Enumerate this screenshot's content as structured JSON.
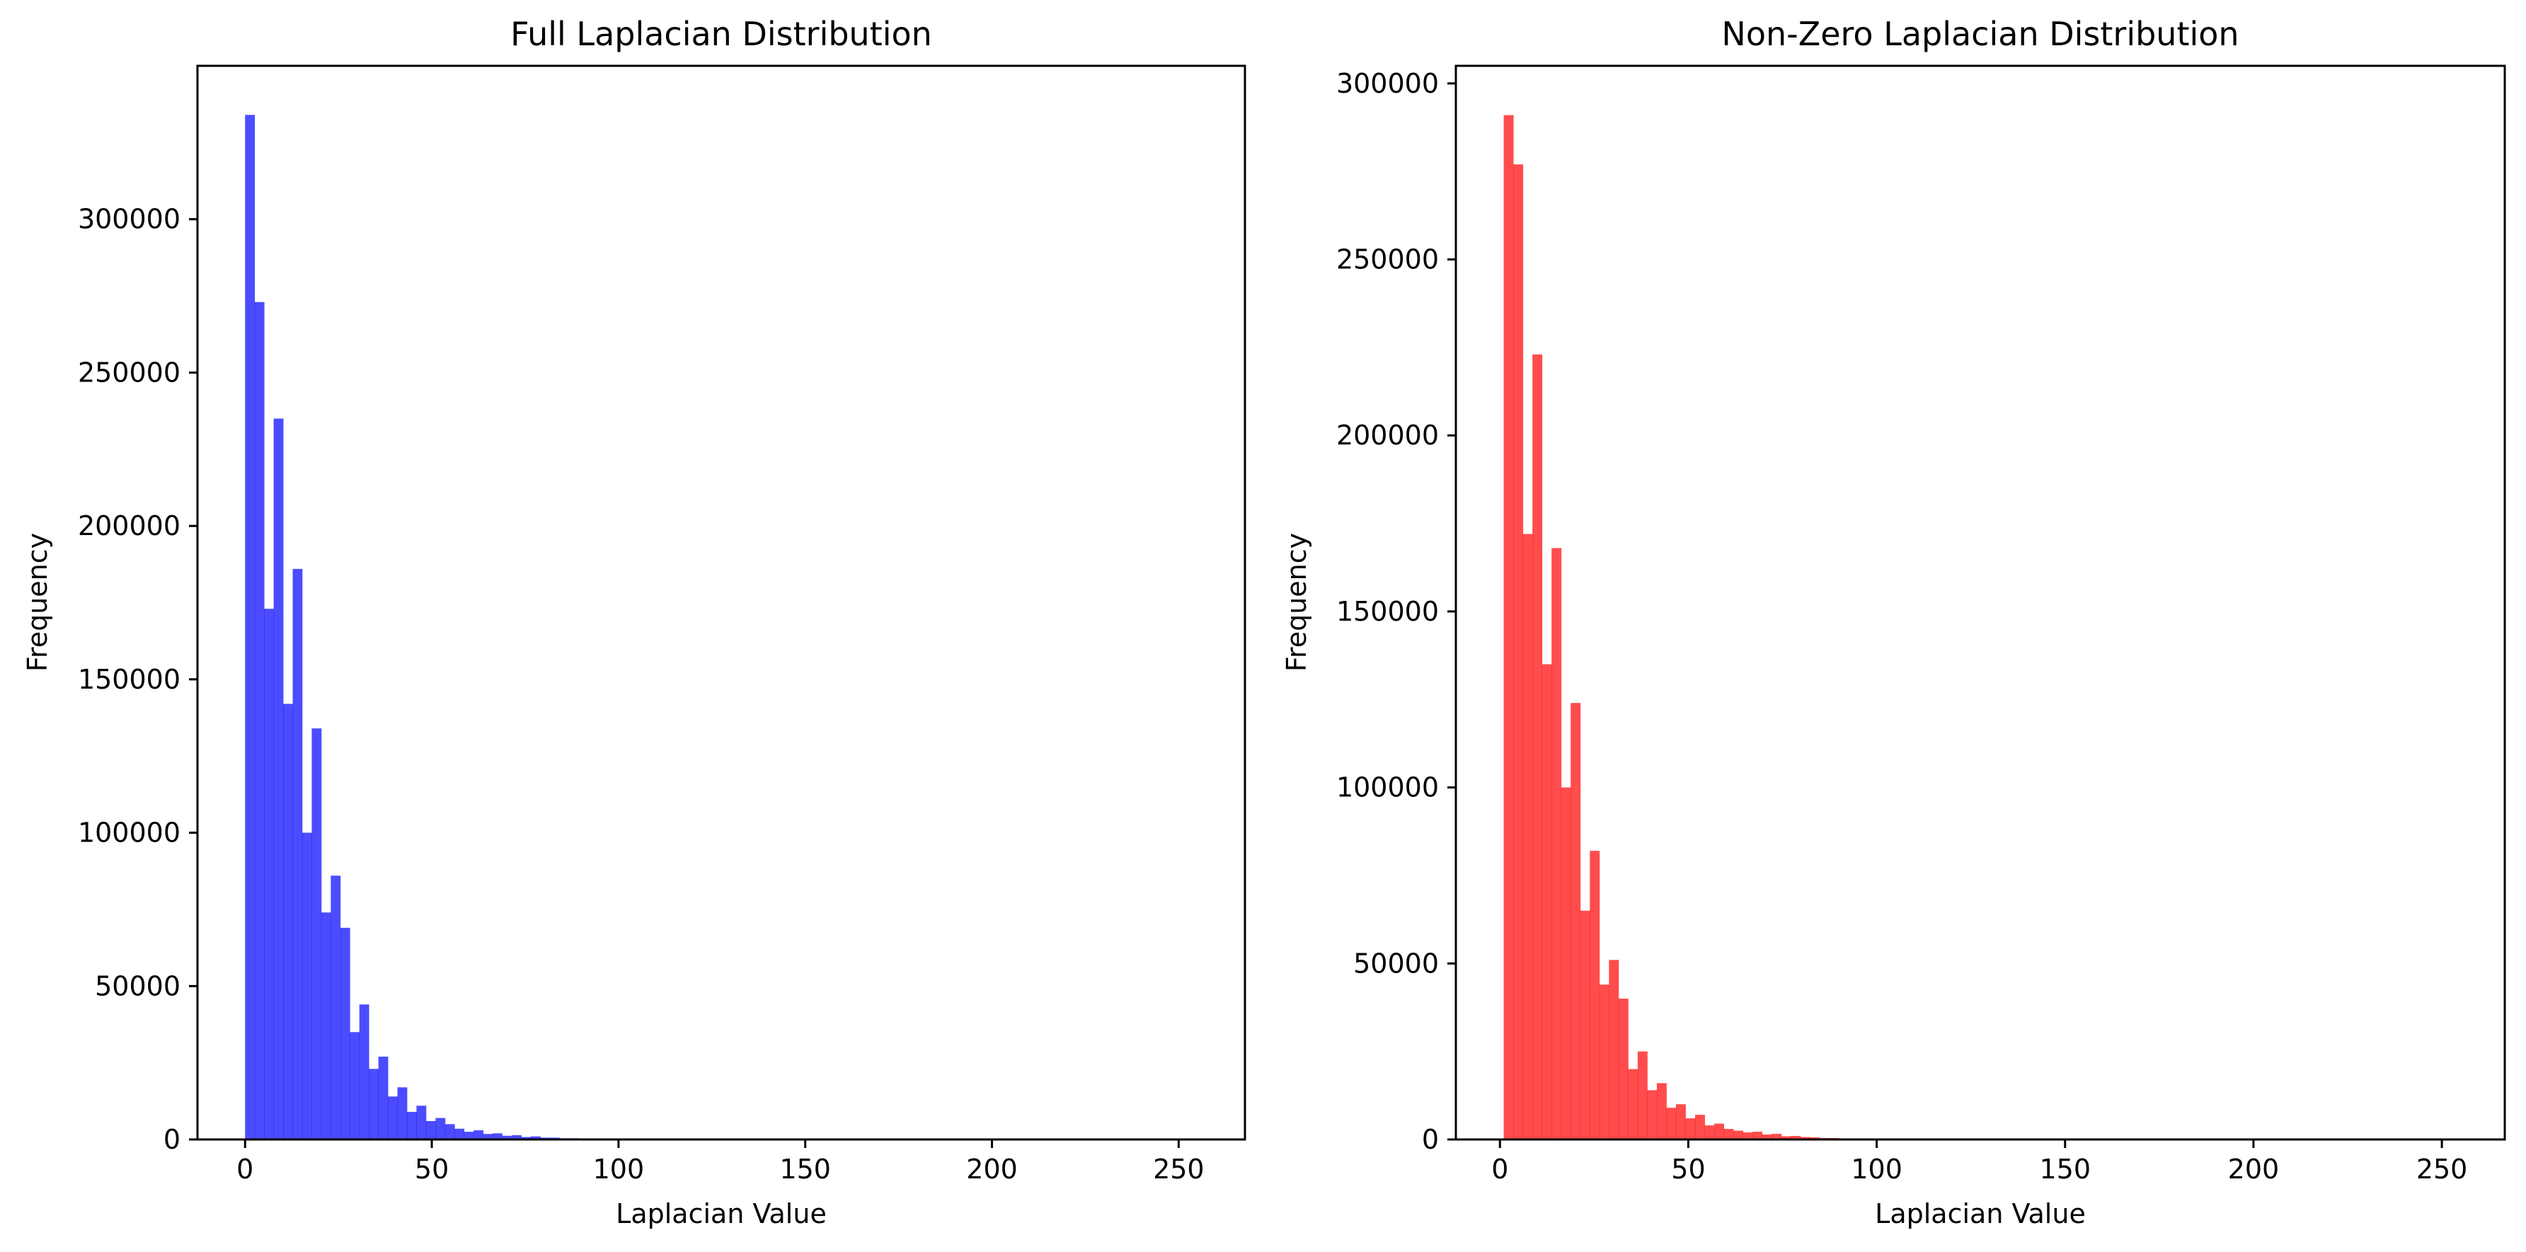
{
  "chart_data": [
    {
      "type": "bar",
      "title": "Full Laplacian Distribution",
      "xlabel": "Laplacian Value",
      "ylabel": "Frequency",
      "color": "#0000ff",
      "opacity": 0.7,
      "xlim": [
        -12.75,
        267.75
      ],
      "ylim": [
        0,
        350000
      ],
      "xticks": [
        0,
        50,
        100,
        150,
        200,
        250
      ],
      "yticks": [
        0,
        50000,
        100000,
        150000,
        200000,
        250000,
        300000
      ],
      "bin_start": 0,
      "bin_width": 2.55,
      "values": [
        334000,
        273000,
        173000,
        235000,
        142000,
        186000,
        100000,
        134000,
        74000,
        86000,
        69000,
        35000,
        44000,
        23000,
        27000,
        14000,
        17000,
        9000,
        11000,
        6000,
        7000,
        5000,
        3500,
        2500,
        3000,
        1800,
        2000,
        1200,
        1400,
        800,
        1000,
        600,
        600,
        400,
        400,
        300,
        300,
        200,
        150,
        100,
        80,
        60,
        50,
        40,
        30,
        20,
        15,
        10,
        8,
        5,
        4,
        3,
        2,
        2,
        1,
        1,
        1,
        1,
        1,
        1,
        0,
        0,
        0,
        0,
        0,
        0,
        0,
        0,
        0,
        0,
        0,
        0,
        0,
        0,
        0,
        0,
        0,
        0,
        0,
        0,
        0,
        0,
        0,
        0,
        0,
        0,
        0,
        0,
        0,
        0,
        0,
        0,
        0,
        0,
        0,
        0,
        0,
        0,
        0,
        0
      ]
    },
    {
      "type": "bar",
      "title": "Non-Zero Laplacian Distribution",
      "xlabel": "Laplacian Value",
      "ylabel": "Frequency",
      "color": "#ff0000",
      "opacity": 0.7,
      "xlim": [
        -11.7,
        266.7
      ],
      "ylim": [
        0,
        305000
      ],
      "xticks": [
        0,
        50,
        100,
        150,
        200,
        250
      ],
      "yticks": [
        0,
        50000,
        100000,
        150000,
        200000,
        250000,
        300000
      ],
      "bin_start": 1,
      "bin_width": 2.54,
      "values": [
        291000,
        277000,
        172000,
        223000,
        135000,
        168000,
        100000,
        124000,
        65000,
        82000,
        44000,
        51000,
        40000,
        20000,
        25000,
        14000,
        16000,
        9000,
        10000,
        6000,
        7000,
        4000,
        4500,
        3000,
        2500,
        2000,
        2200,
        1400,
        1600,
        900,
        1000,
        700,
        600,
        400,
        400,
        300,
        250,
        200,
        150,
        100,
        80,
        60,
        50,
        40,
        30,
        20,
        15,
        10,
        8,
        5,
        4,
        3,
        2,
        2,
        1,
        1,
        1,
        1,
        1,
        1,
        0,
        0,
        0,
        0,
        0,
        0,
        0,
        0,
        0,
        0,
        0,
        0,
        0,
        0,
        0,
        0,
        0,
        0,
        0,
        0,
        0,
        0,
        0,
        0,
        0,
        0,
        0,
        0,
        0,
        0,
        0,
        0,
        0,
        0,
        0,
        0,
        0,
        0,
        0,
        0
      ]
    }
  ]
}
